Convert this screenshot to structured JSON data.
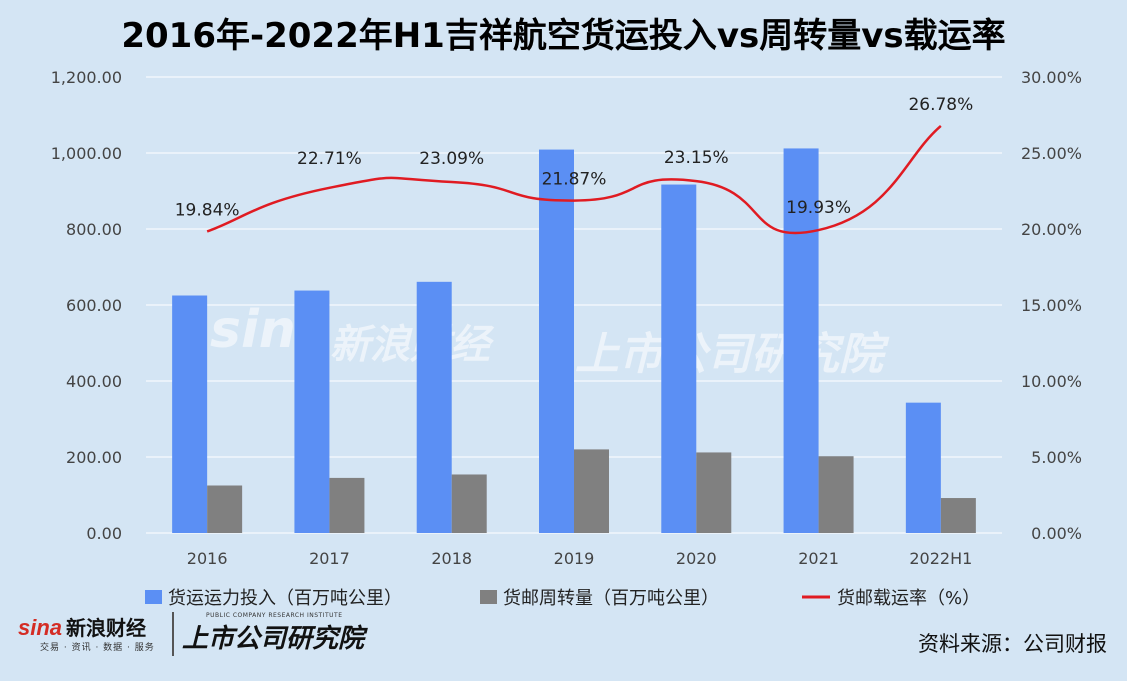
{
  "title": "2016年-2022年H1吉祥航空货运投入vs周转量vs载运率",
  "source": "资料来源：公司财报",
  "logos": {
    "sina_latin": "sina",
    "sina_cn": "新浪财经",
    "sina_sub": "交易 · 资讯 · 数据 · 服务",
    "institute": "上市公司研究院",
    "institute_sub": "PUBLIC COMPANY RESEARCH INSTITUTE"
  },
  "colors": {
    "background": "#d4e5f4",
    "bar_capacity": "#5b8ff4",
    "bar_turnover": "#808080",
    "line_rate": "#e01b22"
  },
  "chart_data": {
    "type": "bar",
    "categories": [
      "2016",
      "2017",
      "2018",
      "2019",
      "2020",
      "2021",
      "2022H1"
    ],
    "series": [
      {
        "name": "货运运力投入（百万吨公里）",
        "type": "bar",
        "axis": "left",
        "values": [
          625,
          638,
          661,
          1009,
          917,
          1012,
          343
        ]
      },
      {
        "name": "货邮周转量（百万吨公里）",
        "type": "bar",
        "axis": "left",
        "values": [
          125,
          145,
          154,
          220,
          212,
          202,
          92
        ]
      },
      {
        "name": "货邮载运率（%）",
        "type": "line",
        "axis": "right",
        "values": [
          19.84,
          22.71,
          23.09,
          21.87,
          23.15,
          19.93,
          26.78
        ],
        "labels": [
          "19.84%",
          "22.71%",
          "23.09%",
          "21.87%",
          "23.15%",
          "19.93%",
          "26.78%"
        ]
      }
    ],
    "ylim_left": [
      0,
      1200
    ],
    "ylim_right": [
      0,
      30
    ],
    "yticks_left": [
      "0.00",
      "200.00",
      "400.00",
      "600.00",
      "800.00",
      "1,000.00",
      "1,200.00"
    ],
    "yticks_right": [
      "0.00%",
      "5.00%",
      "10.00%",
      "15.00%",
      "20.00%",
      "25.00%",
      "30.00%"
    ],
    "grid": true,
    "legend_position": "bottom"
  }
}
